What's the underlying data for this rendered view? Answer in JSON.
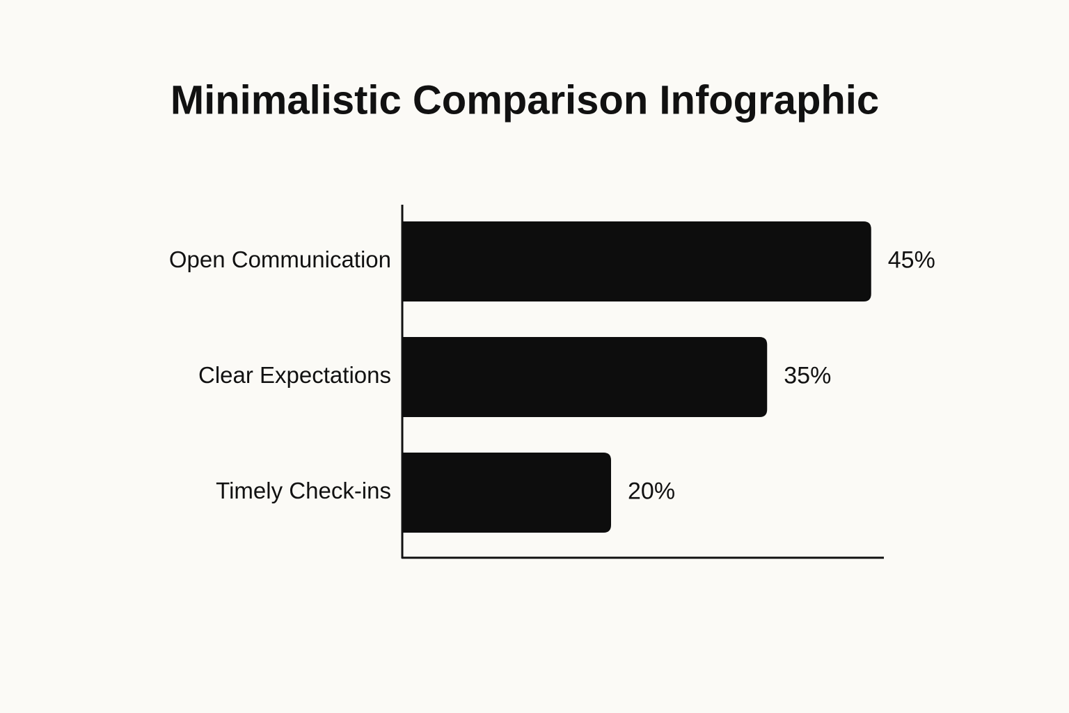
{
  "chart_data": {
    "type": "bar",
    "orientation": "horizontal",
    "title": "Minimalistic Comparison Infographic",
    "categories": [
      "Open Communication",
      "Clear Expectations",
      "Timely Check-ins"
    ],
    "values": [
      45,
      35,
      20
    ],
    "value_labels": [
      "45%",
      "35%",
      "20%"
    ],
    "color": "#0d0d0d"
  }
}
